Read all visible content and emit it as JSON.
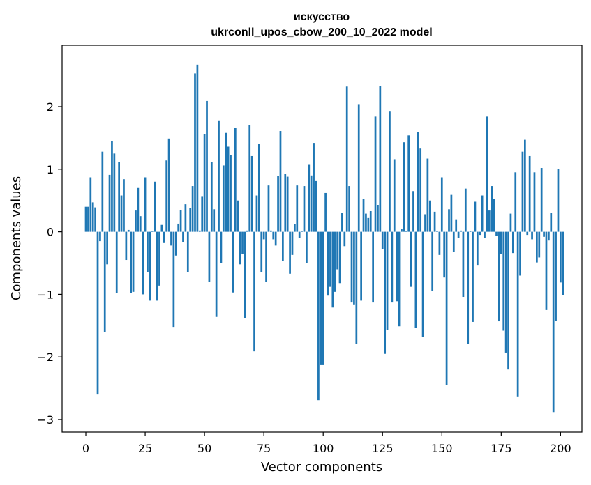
{
  "chart_data": {
    "type": "bar",
    "title": "искусство",
    "subtitle": "ukrconll_upos_cbow_200_10_2022 model",
    "xlabel": "Vector components",
    "ylabel": "Components values",
    "xlim": [
      -10,
      209
    ],
    "ylim": [
      -3.2,
      2.98
    ],
    "xticks": [
      0,
      25,
      50,
      75,
      100,
      125,
      150,
      175,
      200
    ],
    "yticks": [
      -3,
      -2,
      -1,
      0,
      1,
      2
    ],
    "ytick_labels": [
      "−3",
      "−2",
      "−1",
      "0",
      "1",
      "2"
    ],
    "bar_color": "#1f77b4",
    "grid": false,
    "values": [
      0.4,
      0.4,
      0.87,
      0.47,
      0.39,
      -2.6,
      -0.15,
      1.28,
      -1.6,
      -0.52,
      0.91,
      1.45,
      1.25,
      -0.98,
      1.12,
      0.58,
      0.84,
      -0.45,
      0.03,
      -0.98,
      -0.96,
      0.34,
      0.7,
      0.25,
      -1.0,
      0.87,
      -0.64,
      -1.1,
      0.01,
      0.8,
      -1.1,
      -0.86,
      0.11,
      -0.18,
      1.14,
      1.49,
      -0.22,
      -1.52,
      -0.38,
      0.13,
      0.35,
      -0.17,
      0.44,
      -0.64,
      0.38,
      0.73,
      2.53,
      2.67,
      0.02,
      0.57,
      1.56,
      2.09,
      -0.8,
      1.11,
      0.36,
      -1.36,
      1.78,
      -0.5,
      1.06,
      1.58,
      1.36,
      1.23,
      -0.97,
      1.66,
      0.5,
      -0.52,
      -0.36,
      -1.38,
      0.02,
      1.7,
      1.21,
      -1.91,
      0.58,
      1.4,
      -0.65,
      -0.12,
      -0.8,
      0.74,
      0.02,
      -0.12,
      -0.22,
      0.89,
      1.61,
      -0.47,
      0.93,
      0.88,
      -0.67,
      -0.37,
      0.12,
      0.74,
      -0.1,
      0.01,
      0.73,
      -0.5,
      1.07,
      0.9,
      1.42,
      0.81,
      -2.69,
      -2.13,
      -2.13,
      0.62,
      -1.02,
      -0.88,
      -1.21,
      -0.96,
      -0.6,
      -0.82,
      0.3,
      -0.23,
      2.32,
      0.73,
      -1.13,
      -1.16,
      -1.79,
      2.04,
      -1.1,
      0.53,
      0.29,
      0.22,
      0.33,
      -1.13,
      1.84,
      0.43,
      2.33,
      -0.28,
      -1.95,
      -1.57,
      1.92,
      -1.13,
      1.16,
      -1.11,
      -1.51,
      0.04,
      1.43,
      0.01,
      1.54,
      -0.88,
      0.65,
      -1.54,
      1.59,
      1.33,
      -1.68,
      0.28,
      1.17,
      0.5,
      -0.95,
      0.32,
      0.01,
      -0.37,
      0.87,
      -0.73,
      -2.45,
      0.36,
      0.59,
      -0.32,
      0.2,
      -0.1,
      0.02,
      -1.04,
      0.69,
      -1.79,
      0.01,
      -1.44,
      0.48,
      -0.54,
      -0.05,
      0.58,
      -0.1,
      1.84,
      0.34,
      0.73,
      0.52,
      -0.07,
      -1.43,
      -0.35,
      -1.58,
      -1.93,
      -2.2,
      0.29,
      -0.34,
      0.95,
      -2.63,
      -0.7,
      1.28,
      1.47,
      -0.05,
      1.21,
      -0.12,
      0.95,
      -0.49,
      -0.41,
      1.02,
      -0.08,
      -1.25,
      -0.14,
      0.3,
      -2.88,
      -1.42,
      1.0,
      -0.81,
      -1.01
    ]
  }
}
